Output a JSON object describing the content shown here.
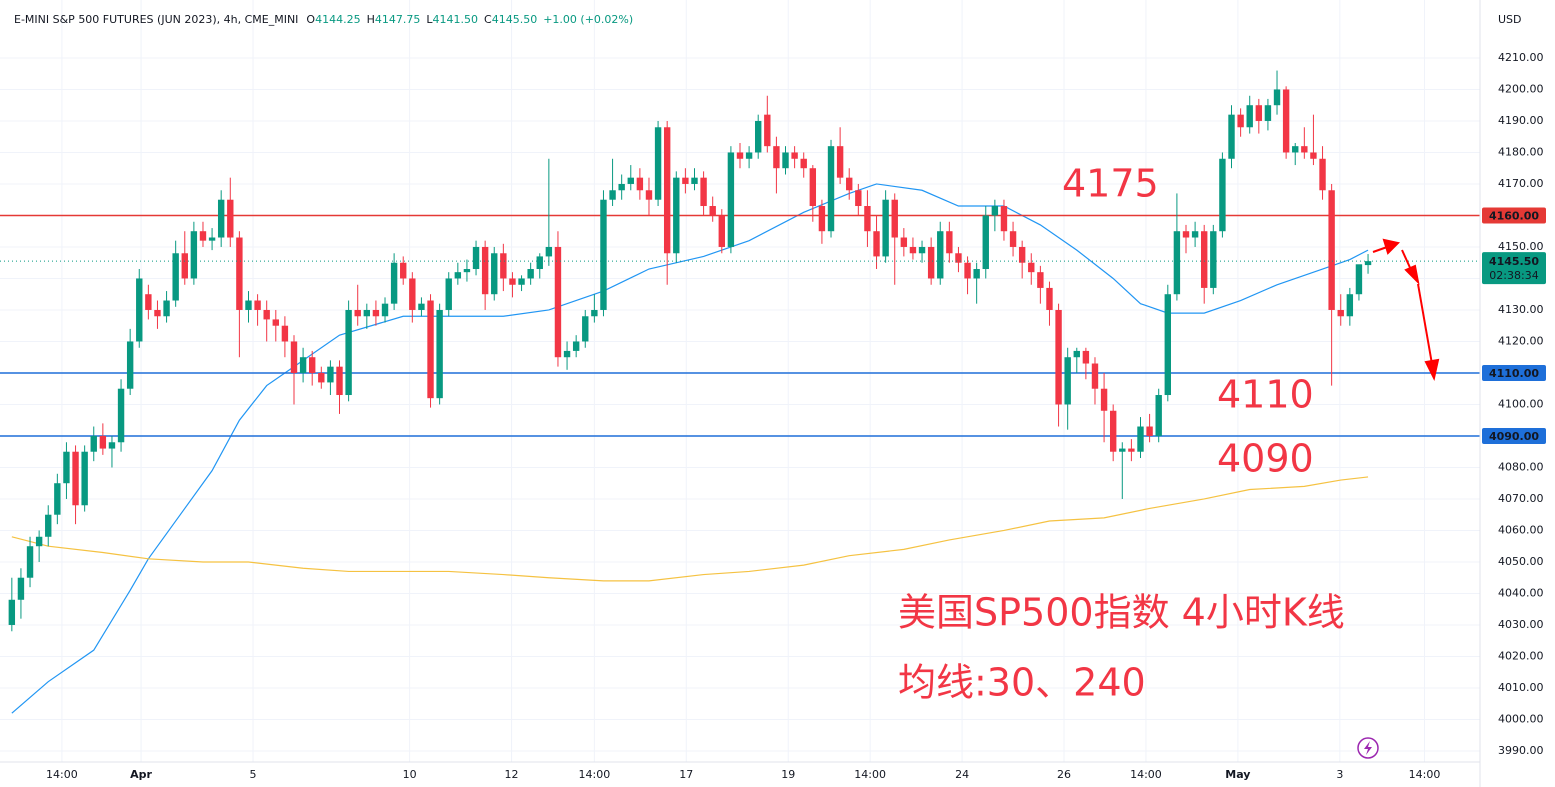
{
  "header": {
    "title": "E-MINI S&P 500 FUTURES (JUN 2023), 4h, CME_MINI",
    "ohlc": [
      {
        "key": "O",
        "value": "4144.25"
      },
      {
        "key": "H",
        "value": "4147.75"
      },
      {
        "key": "L",
        "value": "4141.50"
      },
      {
        "key": "C",
        "value": "4145.50"
      }
    ],
    "change": "+1.00 (+0.02%)"
  },
  "chart_data": {
    "type": "candlestick",
    "currency": "USD",
    "up_color": "#089981",
    "down_color": "#f23645",
    "open": [
      4030,
      4038,
      4045,
      4055,
      4058,
      4065,
      4075,
      4085,
      4068,
      4085,
      4090,
      4086,
      4088,
      4105,
      4120,
      4135,
      4130,
      4128,
      4133,
      4148,
      4140,
      4155,
      4152,
      4153,
      4165,
      4153,
      4130,
      4133,
      4130,
      4127,
      4125,
      4120,
      4110,
      4115,
      4110,
      4107,
      4112,
      4103,
      4130,
      4128,
      4130,
      4128,
      4132,
      4145,
      4140,
      4130,
      4133,
      4102,
      4130,
      4140,
      4142,
      4143,
      4150,
      4135,
      4148,
      4140,
      4138,
      4140,
      4143,
      4147,
      4150,
      4115,
      4117,
      4120,
      4128,
      4130,
      4165,
      4168,
      4170,
      4172,
      4168,
      4165,
      4188,
      4148,
      4172,
      4170,
      4172,
      4163,
      4160,
      4150,
      4180,
      4178,
      4180,
      4192,
      4182,
      4175,
      4180,
      4178,
      4175,
      4163,
      4155,
      4182,
      4172,
      4168,
      4163,
      4155,
      4147,
      4165,
      4153,
      4150,
      4148,
      4150,
      4140,
      4155,
      4148,
      4145,
      4140,
      4143,
      4160,
      4163,
      4155,
      4150,
      4145,
      4142,
      4137,
      4130,
      4100,
      4115,
      4117,
      4113,
      4105,
      4098,
      4085,
      4086,
      4085,
      4093,
      4090,
      4103,
      4135,
      4155,
      4153,
      4155,
      4137,
      4155,
      4178,
      4192,
      4188,
      4195,
      4190,
      4195,
      4200,
      4180,
      4182,
      4180,
      4178,
      4168,
      4130,
      4128,
      4135,
      4144.25
    ],
    "high": [
      4045,
      4048,
      4058,
      4060,
      4068,
      4078,
      4088,
      4087,
      4087,
      4093,
      4094,
      4090,
      4108,
      4124,
      4143,
      4138,
      4133,
      4136,
      4152,
      4155,
      4158,
      4158,
      4156,
      4168,
      4172,
      4155,
      4136,
      4135,
      4133,
      4130,
      4128,
      4122,
      4118,
      4117,
      4112,
      4114,
      4114,
      4133,
      4138,
      4132,
      4133,
      4134,
      4148,
      4147,
      4142,
      4134,
      4135,
      4132,
      4142,
      4145,
      4146,
      4152,
      4152,
      4150,
      4151,
      4142,
      4141,
      4145,
      4148,
      4178,
      4155,
      4120,
      4122,
      4130,
      4135,
      4168,
      4178,
      4173,
      4176,
      4175,
      4172,
      4190,
      4190,
      4174,
      4175,
      4175,
      4174,
      4166,
      4162,
      4182,
      4183,
      4182,
      4192,
      4198,
      4185,
      4182,
      4182,
      4180,
      4176,
      4165,
      4184,
      4188,
      4175,
      4170,
      4168,
      4160,
      4168,
      4167,
      4156,
      4153,
      4152,
      4153,
      4158,
      4158,
      4150,
      4147,
      4145,
      4163,
      4165,
      4165,
      4158,
      4152,
      4148,
      4144,
      4139,
      4132,
      4118,
      4118,
      4118,
      4115,
      4110,
      4100,
      4088,
      4089,
      4096,
      4097,
      4105,
      4138,
      4167,
      4157,
      4158,
      4157,
      4157,
      4180,
      4195,
      4194,
      4198,
      4197,
      4197,
      4206,
      4201,
      4183,
      4188,
      4192,
      4182,
      4170,
      4135,
      4137,
      4143,
      4147.75
    ],
    "low": [
      4028,
      4032,
      4042,
      4050,
      4055,
      4062,
      4070,
      4062,
      4066,
      4082,
      4084,
      4080,
      4085,
      4103,
      4118,
      4127,
      4124,
      4126,
      4131,
      4138,
      4138,
      4150,
      4149,
      4150,
      4150,
      4115,
      4126,
      4125,
      4120,
      4120,
      4115,
      4100,
      4107,
      4106,
      4105,
      4103,
      4097,
      4101,
      4125,
      4124,
      4125,
      4126,
      4130,
      4138,
      4126,
      4128,
      4099,
      4100,
      4128,
      4138,
      4139,
      4141,
      4130,
      4133,
      4136,
      4134,
      4136,
      4138,
      4140,
      4144,
      4112,
      4111,
      4115,
      4118,
      4126,
      4128,
      4163,
      4165,
      4168,
      4165,
      4160,
      4163,
      4138,
      4145,
      4167,
      4168,
      4160,
      4158,
      4148,
      4148,
      4175,
      4175,
      4178,
      4180,
      4167,
      4173,
      4175,
      4172,
      4158,
      4151,
      4153,
      4170,
      4165,
      4160,
      4150,
      4143,
      4145,
      4138,
      4147,
      4146,
      4145,
      4138,
      4138,
      4145,
      4142,
      4135,
      4132,
      4140,
      4155,
      4152,
      4147,
      4140,
      4138,
      4132,
      4125,
      4093,
      4092,
      4110,
      4108,
      4100,
      4088,
      4082,
      4070,
      4082,
      4083,
      4088,
      4088,
      4101,
      4133,
      4148,
      4150,
      4132,
      4135,
      4153,
      4175,
      4185,
      4186,
      4186,
      4187,
      4192,
      4178,
      4176,
      4178,
      4176,
      4165,
      4106,
      4125,
      4125,
      4133,
      4141.5
    ],
    "close": [
      4038,
      4045,
      4055,
      4058,
      4065,
      4075,
      4085,
      4068,
      4085,
      4090,
      4086,
      4088,
      4105,
      4120,
      4140,
      4130,
      4128,
      4133,
      4148,
      4140,
      4155,
      4152,
      4153,
      4165,
      4153,
      4130,
      4133,
      4130,
      4127,
      4125,
      4120,
      4110,
      4115,
      4110,
      4107,
      4112,
      4103,
      4130,
      4128,
      4130,
      4128,
      4132,
      4145,
      4140,
      4130,
      4132,
      4102,
      4130,
      4140,
      4142,
      4143,
      4150,
      4135,
      4148,
      4140,
      4138,
      4140,
      4143,
      4147,
      4150,
      4115,
      4117,
      4120,
      4128,
      4130,
      4165,
      4168,
      4170,
      4172,
      4168,
      4165,
      4188,
      4148,
      4172,
      4170,
      4172,
      4163,
      4160,
      4150,
      4180,
      4178,
      4180,
      4190,
      4182,
      4175,
      4180,
      4178,
      4175,
      4163,
      4155,
      4182,
      4172,
      4168,
      4163,
      4155,
      4147,
      4165,
      4153,
      4150,
      4148,
      4150,
      4140,
      4155,
      4148,
      4145,
      4140,
      4143,
      4160,
      4163,
      4155,
      4150,
      4145,
      4142,
      4137,
      4130,
      4100,
      4115,
      4117,
      4113,
      4105,
      4098,
      4085,
      4086,
      4085,
      4093,
      4090,
      4103,
      4135,
      4155,
      4153,
      4155,
      4137,
      4155,
      4178,
      4192,
      4188,
      4195,
      4190,
      4195,
      4200,
      4180,
      4182,
      4180,
      4178,
      4168,
      4130,
      4128,
      4135,
      4144.5,
      4145.5
    ],
    "lines": [
      {
        "color": "#2196f3",
        "x": [
          0,
          4,
          9,
          13,
          15,
          19,
          22,
          25,
          28,
          32,
          36,
          43,
          48,
          54,
          59,
          65,
          70,
          76,
          81,
          87,
          92,
          95,
          100,
          104,
          109,
          113,
          117,
          121,
          124,
          127,
          131,
          135,
          139,
          144,
          147,
          149
        ],
        "values": [
          4002,
          4012,
          4022,
          4041,
          4051,
          4067,
          4079,
          4095,
          4106,
          4114,
          4122,
          4128,
          4128,
          4128,
          4130,
          4136,
          4143,
          4147,
          4152,
          4161,
          4167,
          4170,
          4168,
          4163,
          4163,
          4157,
          4149,
          4140,
          4132,
          4129,
          4129,
          4133,
          4138,
          4143,
          4146,
          4149
        ]
      },
      {
        "color": "#f5c242",
        "x": [
          0,
          4,
          10,
          15,
          21,
          26,
          32,
          37,
          43,
          48,
          54,
          59,
          65,
          70,
          76,
          81,
          87,
          92,
          98,
          103,
          109,
          114,
          120,
          125,
          131,
          136,
          142,
          146,
          149
        ],
        "values": [
          4058,
          4055,
          4053,
          4051,
          4050,
          4050,
          4048,
          4047,
          4047,
          4047,
          4046,
          4045,
          4044,
          4044,
          4046,
          4047,
          4049,
          4052,
          4054,
          4057,
          4060,
          4063,
          4064,
          4067,
          4070,
          4073,
          4074,
          4076,
          4077
        ]
      }
    ],
    "levels": [
      {
        "value": 4160,
        "label": "4160.00",
        "color": "#e53935"
      },
      {
        "value": 4110,
        "label": "4110.00",
        "color": "#1e6fd9"
      },
      {
        "value": 4090,
        "label": "4090.00",
        "color": "#1e6fd9"
      }
    ],
    "last_price": {
      "value": 4145.5,
      "label": "4145.50",
      "countdown": "02:38:34",
      "color": "#089981"
    },
    "annotations": [
      "4175",
      "4110",
      "4090",
      "美国SP500指数 4小时K线",
      "均线:30、240"
    ],
    "xlim": [
      -1.3,
      161.3
    ],
    "ylim": [
      3986.5,
      4228.4
    ],
    "grid": true,
    "xticks": [
      {
        "value": 5.5,
        "label": "14:00"
      },
      {
        "value": 14.2,
        "label": "Apr"
      },
      {
        "value": 26.5,
        "label": "5"
      },
      {
        "value": 43.7,
        "label": "10"
      },
      {
        "value": 54.9,
        "label": "12"
      },
      {
        "value": 64.0,
        "label": "14:00"
      },
      {
        "value": 74.1,
        "label": "17"
      },
      {
        "value": 85.3,
        "label": "19"
      },
      {
        "value": 94.3,
        "label": "14:00"
      },
      {
        "value": 104.4,
        "label": "24"
      },
      {
        "value": 115.6,
        "label": "26"
      },
      {
        "value": 124.6,
        "label": "14:00"
      },
      {
        "value": 134.7,
        "label": "May"
      },
      {
        "value": 145.9,
        "label": "3"
      },
      {
        "value": 155.2,
        "label": "14:00"
      }
    ],
    "yticks": [
      {
        "value": 3990,
        "label": "3990.00"
      },
      {
        "value": 4000,
        "label": "4000.00"
      },
      {
        "value": 4010,
        "label": "4010.00"
      },
      {
        "value": 4020,
        "label": "4020.00"
      },
      {
        "value": 4030,
        "label": "4030.00"
      },
      {
        "value": 4040,
        "label": "4040.00"
      },
      {
        "value": 4050,
        "label": "4050.00"
      },
      {
        "value": 4060,
        "label": "4060.00"
      },
      {
        "value": 4070,
        "label": "4070.00"
      },
      {
        "value": 4080,
        "label": "4080.00"
      },
      {
        "value": 4090,
        "label": "4090.00"
      },
      {
        "value": 4100,
        "label": "4100.00"
      },
      {
        "value": 4110,
        "label": "4110.00"
      },
      {
        "value": 4120,
        "label": "4120.00"
      },
      {
        "value": 4130,
        "label": "4130.00"
      },
      {
        "value": 4140,
        "label": "4140.00"
      },
      {
        "value": 4150,
        "label": "4150.00"
      },
      {
        "value": 4160,
        "label": "4160.00"
      },
      {
        "value": 4170,
        "label": "4170.00"
      },
      {
        "value": 4180,
        "label": "4180.00"
      },
      {
        "value": 4190,
        "label": "4190.00"
      },
      {
        "value": 4200,
        "label": "4200.00"
      },
      {
        "value": 4210,
        "label": "4210.00"
      }
    ]
  }
}
